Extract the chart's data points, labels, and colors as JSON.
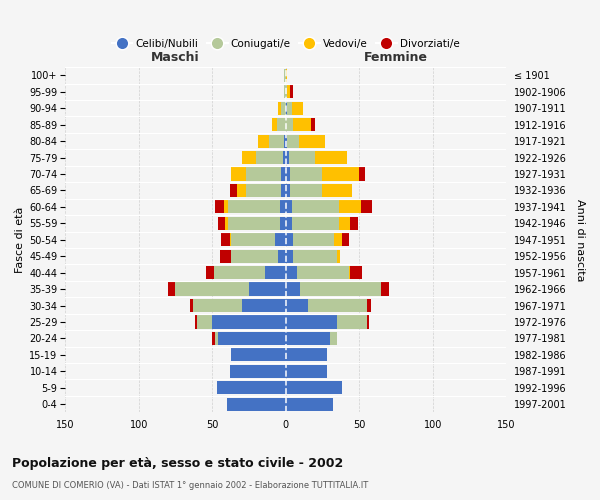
{
  "age_groups": [
    "0-4",
    "5-9",
    "10-14",
    "15-19",
    "20-24",
    "25-29",
    "30-34",
    "35-39",
    "40-44",
    "45-49",
    "50-54",
    "55-59",
    "60-64",
    "65-69",
    "70-74",
    "75-79",
    "80-84",
    "85-89",
    "90-94",
    "95-99",
    "100+"
  ],
  "birth_years": [
    "1997-2001",
    "1992-1996",
    "1987-1991",
    "1982-1986",
    "1977-1981",
    "1972-1976",
    "1967-1971",
    "1962-1966",
    "1957-1961",
    "1952-1956",
    "1947-1951",
    "1942-1946",
    "1937-1941",
    "1932-1936",
    "1927-1931",
    "1922-1926",
    "1917-1921",
    "1912-1916",
    "1907-1911",
    "1902-1906",
    "≤ 1901"
  ],
  "maschi": {
    "celibi": [
      40,
      47,
      38,
      37,
      46,
      50,
      30,
      25,
      14,
      5,
      7,
      4,
      4,
      3,
      3,
      2,
      1,
      0,
      0,
      0,
      0
    ],
    "coniugati": [
      0,
      0,
      0,
      0,
      2,
      10,
      33,
      50,
      35,
      32,
      30,
      35,
      35,
      24,
      24,
      18,
      10,
      6,
      3,
      1,
      1
    ],
    "vedovi": [
      0,
      0,
      0,
      0,
      0,
      0,
      0,
      0,
      0,
      0,
      1,
      2,
      3,
      6,
      10,
      10,
      8,
      3,
      2,
      0,
      0
    ],
    "divorziati": [
      0,
      0,
      0,
      0,
      2,
      2,
      2,
      5,
      5,
      8,
      6,
      5,
      6,
      5,
      0,
      0,
      0,
      0,
      0,
      0,
      0
    ]
  },
  "femmine": {
    "nubili": [
      32,
      38,
      28,
      28,
      30,
      35,
      15,
      10,
      8,
      5,
      5,
      4,
      4,
      3,
      3,
      2,
      1,
      0,
      1,
      0,
      0
    ],
    "coniugate": [
      0,
      0,
      0,
      0,
      5,
      20,
      40,
      55,
      35,
      30,
      28,
      32,
      32,
      22,
      22,
      18,
      8,
      5,
      3,
      1,
      0
    ],
    "vedove": [
      0,
      0,
      0,
      0,
      0,
      0,
      0,
      0,
      1,
      2,
      5,
      8,
      15,
      20,
      25,
      22,
      18,
      12,
      8,
      2,
      1
    ],
    "divorziate": [
      0,
      0,
      0,
      0,
      0,
      2,
      3,
      5,
      8,
      0,
      5,
      5,
      8,
      0,
      4,
      0,
      0,
      3,
      0,
      2,
      0
    ]
  },
  "colors": {
    "celibi_nubili": "#4472c4",
    "coniugati": "#b5c99a",
    "vedovi": "#ffc000",
    "divorziati": "#c00000"
  },
  "xlim": 150,
  "title": "Popolazione per età, sesso e stato civile - 2002",
  "subtitle": "COMUNE DI COMERIO (VA) - Dati ISTAT 1° gennaio 2002 - Elaborazione TUTTITALIA.IT",
  "ylabel_left": "Fasce di età",
  "ylabel_right": "Anni di nascita",
  "xlabel_maschi": "Maschi",
  "xlabel_femmine": "Femmine",
  "legend_labels": [
    "Celibi/Nubili",
    "Coniugati/e",
    "Vedovi/e",
    "Divorziati/e"
  ],
  "bg_color": "#f5f5f5",
  "plot_bg_color": "#f5f5f5",
  "grid_color": "#cccccc"
}
